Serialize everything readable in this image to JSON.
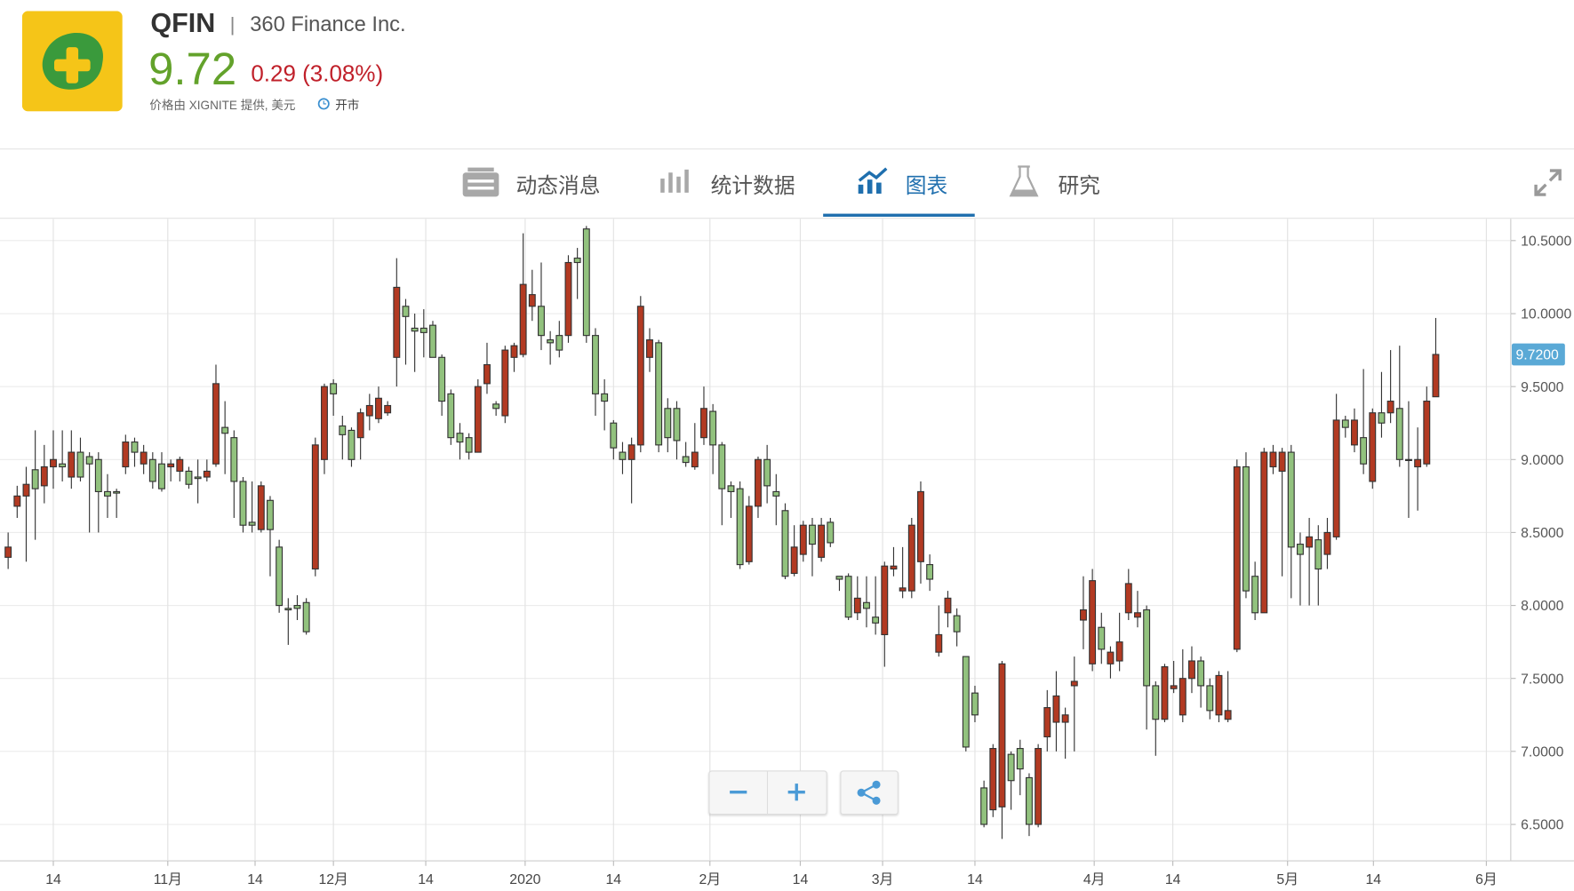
{
  "header": {
    "ticker": "QFIN",
    "separator": "|",
    "company": "360 Finance Inc.",
    "price": "9.72",
    "change": "0.29 (3.08%)",
    "source": "价格由 XIGNITE 提供, 美元",
    "status": "开市"
  },
  "tabs": [
    "动态消息",
    "统计数据",
    "图表",
    "研究"
  ],
  "chart_data": {
    "type": "candlestick",
    "up_color": "#b23a22",
    "down_color": "#92c27e",
    "label_color": "#5aa9d6",
    "xlim": [
      -0.9,
      166.3
    ],
    "ylim": [
      6.25,
      10.65
    ],
    "xticks": [
      {
        "value": 5,
        "label": "14"
      },
      {
        "value": 17.67,
        "label": "11月"
      },
      {
        "value": 27.33,
        "label": "14"
      },
      {
        "value": 36,
        "label": "12月"
      },
      {
        "value": 46.22,
        "label": "14"
      },
      {
        "value": 57.22,
        "label": "2020"
      },
      {
        "value": 67,
        "label": "14"
      },
      {
        "value": 77.67,
        "label": "2月"
      },
      {
        "value": 87.67,
        "label": "14"
      },
      {
        "value": 96.78,
        "label": "3月"
      },
      {
        "value": 107,
        "label": "14"
      },
      {
        "value": 120.2,
        "label": "4月"
      },
      {
        "value": 128.9,
        "label": "14"
      },
      {
        "value": 141.6,
        "label": "5月"
      },
      {
        "value": 151.1,
        "label": "14"
      },
      {
        "value": 163.6,
        "label": "6月"
      }
    ],
    "yticks": [
      {
        "value": 6.5,
        "label": "6.5000"
      },
      {
        "value": 7,
        "label": "7.0000"
      },
      {
        "value": 7.5,
        "label": "7.5000"
      },
      {
        "value": 8,
        "label": "8.0000"
      },
      {
        "value": 8.5,
        "label": "8.5000"
      },
      {
        "value": 9,
        "label": "9.0000"
      },
      {
        "value": 9.5,
        "label": "9.5000"
      },
      {
        "value": 10,
        "label": "10.0000"
      },
      {
        "value": 10.5,
        "label": "10.5000"
      }
    ],
    "grid": true,
    "last_price": {
      "value": 9.72,
      "label": "9.7200"
    },
    "x": [
      0,
      1,
      2,
      3,
      4,
      5,
      6,
      7,
      8,
      9,
      10,
      11,
      12,
      13,
      14,
      15,
      16,
      17,
      18,
      19,
      20,
      21,
      22,
      23,
      24,
      25,
      26,
      27,
      28,
      29,
      30,
      31,
      32,
      33,
      34,
      35,
      36,
      37,
      38,
      39,
      40,
      41,
      42,
      43,
      44,
      45,
      46,
      47,
      48,
      49,
      50,
      51,
      52,
      53,
      54,
      55,
      56,
      57,
      58,
      59,
      60,
      61,
      62,
      63,
      64,
      65,
      66,
      67,
      68,
      69,
      70,
      71,
      72,
      73,
      74,
      75,
      76,
      77,
      78,
      79,
      80,
      81,
      82,
      83,
      84,
      85,
      86,
      87,
      88,
      89,
      90,
      91,
      92,
      93,
      94,
      95,
      96,
      97,
      98,
      99,
      100,
      101,
      102,
      103,
      104,
      105,
      106,
      107,
      108,
      109,
      110,
      111,
      112,
      113,
      114,
      115,
      116,
      117,
      118,
      119,
      120,
      121,
      122,
      123,
      124,
      125,
      126,
      127,
      128,
      129,
      130,
      131,
      132,
      133,
      134,
      135,
      136,
      137,
      138,
      139,
      140,
      141,
      142,
      143,
      144,
      145,
      146,
      147,
      148,
      149,
      150,
      151,
      152,
      153,
      154,
      155,
      156,
      157,
      158
    ],
    "open": [
      8.33,
      8.68,
      8.75,
      8.93,
      8.82,
      8.95,
      8.97,
      8.88,
      9.05,
      9.02,
      9.0,
      8.78,
      8.78,
      8.95,
      9.12,
      8.97,
      9.0,
      8.97,
      8.95,
      8.92,
      8.92,
      8.88,
      8.88,
      8.97,
      9.22,
      9.15,
      8.85,
      8.57,
      8.52,
      8.72,
      8.4,
      7.98,
      8.0,
      8.02,
      8.25,
      9.0,
      9.52,
      9.23,
      9.2,
      9.15,
      9.3,
      9.28,
      9.32,
      9.7,
      10.05,
      9.9,
      9.9,
      9.92,
      9.7,
      9.45,
      9.18,
      9.15,
      9.05,
      9.52,
      9.38,
      9.3,
      9.7,
      9.72,
      10.05,
      10.05,
      9.82,
      9.85,
      9.85,
      10.38,
      10.58,
      9.85,
      9.45,
      9.25,
      9.05,
      9.0,
      9.1,
      9.7,
      9.8,
      9.35,
      9.35,
      9.02,
      8.95,
      9.15,
      9.33,
      9.1,
      8.82,
      8.8,
      8.3,
      8.68,
      9.0,
      8.78,
      8.65,
      8.22,
      8.35,
      8.55,
      8.33,
      8.57,
      8.2,
      8.2,
      7.95,
      8.02,
      7.92,
      7.8,
      8.25,
      8.1,
      8.1,
      8.3,
      8.28,
      7.68,
      7.95,
      7.93,
      7.65,
      7.4,
      6.75,
      6.6,
      6.62,
      6.98,
      7.02,
      6.82,
      6.5,
      7.1,
      7.2,
      7.2,
      7.45,
      7.9,
      7.6,
      7.85,
      7.6,
      7.62,
      7.95,
      7.92,
      7.97,
      7.45,
      7.22,
      7.43,
      7.25,
      7.5,
      7.62,
      7.45,
      7.25,
      7.22,
      7.7,
      8.95,
      8.2,
      7.95,
      8.95,
      8.92,
      9.05,
      8.42,
      8.4,
      8.45,
      8.35,
      8.47,
      9.27,
      9.1,
      9.15,
      8.85,
      9.32,
      9.32,
      9.35,
      9.0,
      8.95,
      8.97,
      9.43
    ],
    "high": [
      8.5,
      8.82,
      8.95,
      9.2,
      9.1,
      9.2,
      9.2,
      9.2,
      9.15,
      9.05,
      9.05,
      8.9,
      8.8,
      9.17,
      9.15,
      9.1,
      9.05,
      9.05,
      9.0,
      9.02,
      8.95,
      9.0,
      9.0,
      9.65,
      9.4,
      9.2,
      8.88,
      8.85,
      8.85,
      8.75,
      8.45,
      8.05,
      8.07,
      8.05,
      9.15,
      9.52,
      9.55,
      9.3,
      9.22,
      9.35,
      9.45,
      9.5,
      9.4,
      10.38,
      10.1,
      10.0,
      10.03,
      9.95,
      9.72,
      9.48,
      9.25,
      9.18,
      9.55,
      9.8,
      9.4,
      9.78,
      9.8,
      10.55,
      10.3,
      10.35,
      9.88,
      9.95,
      10.4,
      10.45,
      10.6,
      9.9,
      9.55,
      9.27,
      9.12,
      9.15,
      10.12,
      9.9,
      9.82,
      9.42,
      9.4,
      9.12,
      9.25,
      9.5,
      9.38,
      9.12,
      8.85,
      8.85,
      8.75,
      9.02,
      9.1,
      8.9,
      8.7,
      8.55,
      8.58,
      8.6,
      8.6,
      8.6,
      8.2,
      8.22,
      8.2,
      8.2,
      8.2,
      8.3,
      8.4,
      8.4,
      8.6,
      8.85,
      8.35,
      8.0,
      8.1,
      7.98,
      7.65,
      7.45,
      6.8,
      7.05,
      7.62,
      7.0,
      7.08,
      6.85,
      7.05,
      7.42,
      7.55,
      7.3,
      7.65,
      8.2,
      8.25,
      7.95,
      7.72,
      7.95,
      8.25,
      8.1,
      8.0,
      7.48,
      7.6,
      7.62,
      7.7,
      7.72,
      7.65,
      7.5,
      7.55,
      7.55,
      9.0,
      9.05,
      8.3,
      9.08,
      9.1,
      9.08,
      9.1,
      8.5,
      8.6,
      8.55,
      8.6,
      9.45,
      9.3,
      9.35,
      9.62,
      9.35,
      9.6,
      9.75,
      9.78,
      9.4,
      9.22,
      9.5,
      9.97
    ],
    "low": [
      8.25,
      8.6,
      8.3,
      8.45,
      8.7,
      8.8,
      8.85,
      8.8,
      8.85,
      8.5,
      8.5,
      8.6,
      8.6,
      8.9,
      8.95,
      8.9,
      8.8,
      8.78,
      8.85,
      8.85,
      8.8,
      8.7,
      8.85,
      8.95,
      8.9,
      8.6,
      8.5,
      8.5,
      8.5,
      8.2,
      7.95,
      7.73,
      7.9,
      7.8,
      8.2,
      8.9,
      9.3,
      9.0,
      8.95,
      9.0,
      9.2,
      9.25,
      9.3,
      9.5,
      9.65,
      9.6,
      9.7,
      9.7,
      9.3,
      9.1,
      9.0,
      9.0,
      9.05,
      9.45,
      9.3,
      9.25,
      9.6,
      9.7,
      9.95,
      9.75,
      9.65,
      9.7,
      9.8,
      10.1,
      9.8,
      9.3,
      9.2,
      9.0,
      8.9,
      8.7,
      9.05,
      9.6,
      9.05,
      9.05,
      9.0,
      8.95,
      8.93,
      9.1,
      8.9,
      8.55,
      8.6,
      8.25,
      8.28,
      8.6,
      8.7,
      8.55,
      8.18,
      8.2,
      8.3,
      8.2,
      8.3,
      8.4,
      8.1,
      7.9,
      7.9,
      7.85,
      7.8,
      7.58,
      8.2,
      8.05,
      8.05,
      8.15,
      8.1,
      7.65,
      7.85,
      7.72,
      7.0,
      7.2,
      6.48,
      6.55,
      6.4,
      6.6,
      6.7,
      6.42,
      6.48,
      7.0,
      7.0,
      6.95,
      7.0,
      7.7,
      7.55,
      7.6,
      7.5,
      7.55,
      7.9,
      7.85,
      7.15,
      6.97,
      7.2,
      7.4,
      7.2,
      7.4,
      7.3,
      7.22,
      7.2,
      7.2,
      7.68,
      8.05,
      7.9,
      7.95,
      8.9,
      8.2,
      8.05,
      8.0,
      8.0,
      8.0,
      8.25,
      8.45,
      9.15,
      9.05,
      8.9,
      8.8,
      9.15,
      9.25,
      8.95,
      8.6,
      8.65,
      8.95,
      9.43
    ],
    "close": [
      8.4,
      8.75,
      8.83,
      8.8,
      8.95,
      9.0,
      8.95,
      9.05,
      8.88,
      8.97,
      8.78,
      8.75,
      8.77,
      9.12,
      9.05,
      9.05,
      8.85,
      8.8,
      8.97,
      9.0,
      8.83,
      8.87,
      8.92,
      9.52,
      9.18,
      8.85,
      8.55,
      8.55,
      8.82,
      8.52,
      8.0,
      7.97,
      7.98,
      7.82,
      9.1,
      9.5,
      9.45,
      9.17,
      9.0,
      9.32,
      9.37,
      9.42,
      9.37,
      10.18,
      9.98,
      9.88,
      9.87,
      9.7,
      9.4,
      9.15,
      9.12,
      9.05,
      9.5,
      9.65,
      9.35,
      9.75,
      9.78,
      10.2,
      10.13,
      9.85,
      9.8,
      9.75,
      10.35,
      10.35,
      9.85,
      9.45,
      9.4,
      9.08,
      9.0,
      9.1,
      10.05,
      9.82,
      9.1,
      9.15,
      9.13,
      8.98,
      9.05,
      9.35,
      9.1,
      8.8,
      8.78,
      8.28,
      8.68,
      9.0,
      8.82,
      8.75,
      8.2,
      8.4,
      8.55,
      8.42,
      8.55,
      8.43,
      8.18,
      7.92,
      8.05,
      7.98,
      7.88,
      8.27,
      8.27,
      8.12,
      8.55,
      8.78,
      8.18,
      7.8,
      8.05,
      7.82,
      7.03,
      7.25,
      6.5,
      7.02,
      7.6,
      6.8,
      6.88,
      6.5,
      7.02,
      7.3,
      7.38,
      7.25,
      7.48,
      7.97,
      8.17,
      7.7,
      7.68,
      7.75,
      8.15,
      7.95,
      7.45,
      7.22,
      7.58,
      7.45,
      7.5,
      7.62,
      7.45,
      7.28,
      7.52,
      7.28,
      8.95,
      8.1,
      7.95,
      9.05,
      9.05,
      9.05,
      8.4,
      8.35,
      8.47,
      8.25,
      8.5,
      9.27,
      9.22,
      9.27,
      8.97,
      9.32,
      9.25,
      9.4,
      9.0,
      9.0,
      9.0,
      9.4,
      9.72
    ]
  }
}
